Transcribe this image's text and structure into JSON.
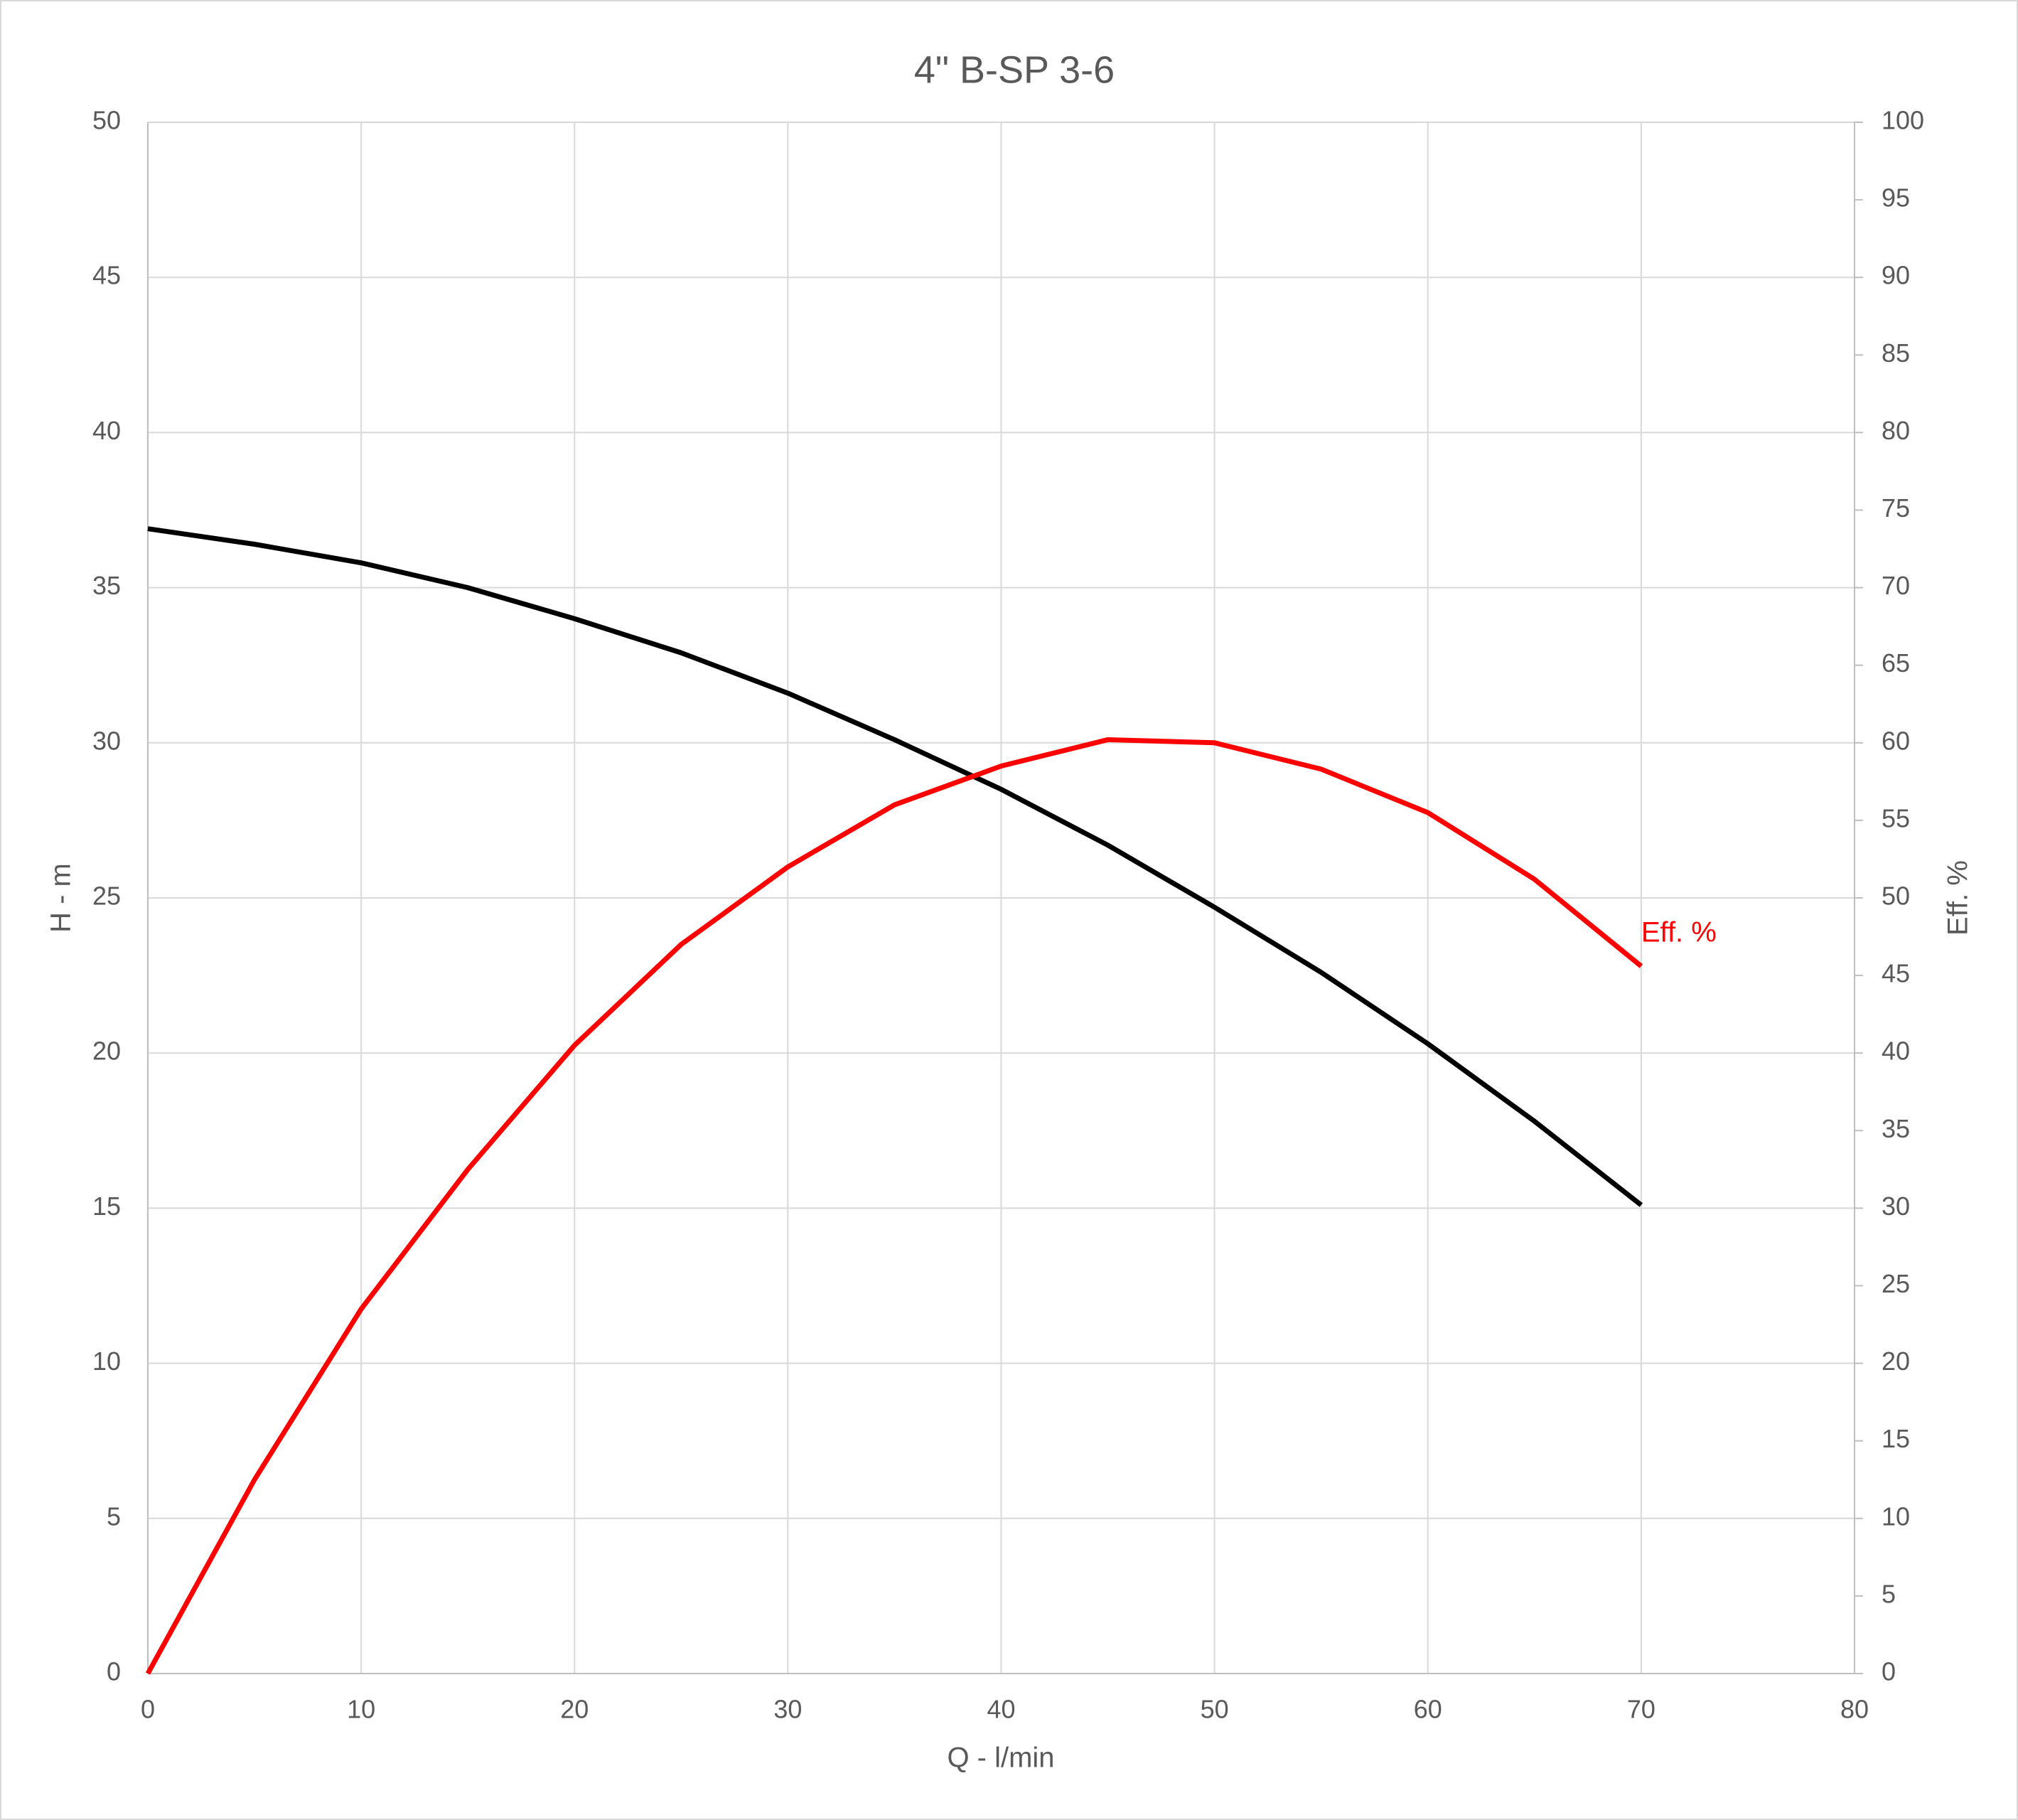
{
  "chart_data": {
    "type": "line",
    "title": "4\" B-SP 3-6",
    "x_label": "Q - l/min",
    "y_label": "H - m",
    "y2_label": "Eff. %",
    "x": [
      0,
      5,
      10,
      15,
      20,
      25,
      30,
      35,
      40,
      45,
      50,
      55,
      60,
      65,
      70
    ],
    "series": [
      {
        "color": "#000000",
        "values": [
          36.9,
          36.4,
          35.8,
          35.0,
          34.0,
          32.9,
          31.6,
          30.1,
          28.5,
          26.7,
          24.7,
          22.6,
          20.3,
          17.8,
          15.1
        ]
      },
      {
        "name": "Eff. %",
        "color": "#ff0000",
        "axis": "y2",
        "values": [
          0,
          12.5,
          23.5,
          32.5,
          40.5,
          47,
          52,
          56,
          58.5,
          60.2,
          60,
          58.3,
          55.5,
          51.2,
          45.6
        ]
      }
    ],
    "xlim": [
      0,
      80
    ],
    "xticks": [
      0,
      10,
      20,
      30,
      40,
      50,
      60,
      70,
      80
    ],
    "ylim": [
      0,
      50
    ],
    "yticks": [
      0,
      5,
      10,
      15,
      20,
      25,
      30,
      35,
      40,
      45,
      50
    ],
    "y2lim": [
      0,
      100
    ],
    "y2ticks": [
      0,
      5,
      10,
      15,
      20,
      25,
      30,
      35,
      40,
      45,
      50,
      55,
      60,
      65,
      70,
      75,
      80,
      85,
      90,
      95,
      100
    ],
    "grid": true
  }
}
